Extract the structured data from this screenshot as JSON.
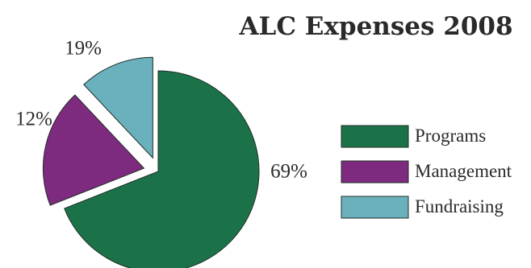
{
  "chart_data": {
    "type": "pie",
    "title": "ALC Expenses 2008",
    "categories": [
      "Programs",
      "Management",
      "Fundraising"
    ],
    "values": [
      69,
      19,
      12
    ],
    "data_labels": [
      "69%",
      "19%",
      "12%"
    ],
    "colors": [
      "#1c7248",
      "#7e2a7e",
      "#6ab0bd"
    ],
    "exploded": [
      "Management",
      "Fundraising"
    ],
    "legend_position": "right"
  }
}
